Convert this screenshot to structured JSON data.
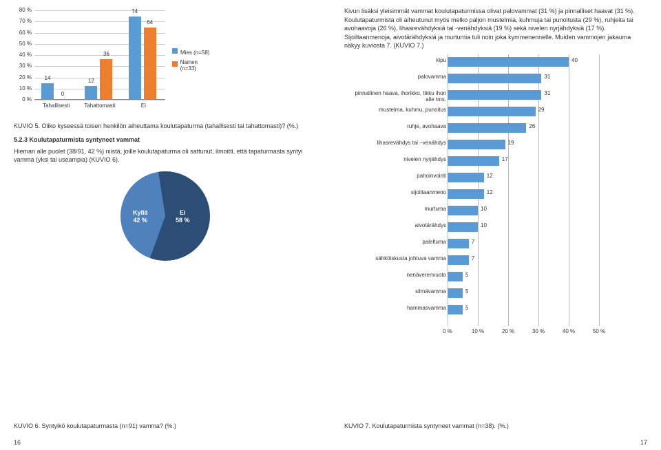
{
  "left": {
    "chart1": {
      "type": "bar-grouped",
      "ymax": 80,
      "ytick": 10,
      "categories": [
        "Tahallisesti",
        "Tahattomasti",
        "Ei"
      ],
      "series": [
        {
          "label": "Mies (n=58)",
          "color": "#5b9bd5",
          "values": [
            14,
            12,
            74
          ]
        },
        {
          "label": "Nainen (n=33)",
          "color": "#ed7d31",
          "values": [
            0,
            36,
            64
          ]
        }
      ]
    },
    "caption1": "KUVIO 5. Oliko kyseessä toisen henkilön aiheuttama koulutapaturma (tahallisesti tai tahattomasti)? (%.)",
    "section": "5.2.3 Koulutapaturmista syntyneet vammat",
    "para": "Hieman alle puolet (38/91, 42 %) niistä, joille koulutapaturma oli sattunut, ilmoitti, että tapaturmasta syntyi vamma (yksi tai useampia) (KUVIO 6).",
    "pie": {
      "slices": [
        {
          "label": "Kyllä\n42 %",
          "value": 42,
          "color": "#4f81bd"
        },
        {
          "label": "Ei\n58 %",
          "value": 58,
          "color": "#2c4d75"
        }
      ]
    },
    "caption2": "KUVIO 6. Syntyikö koulutapaturmasta (n=91) vamma? (%.)",
    "pagenum": "16"
  },
  "right": {
    "para1": "Kivun lisäksi yleisimmät vammat koulutapaturmissa olivat palovammat (31 %) ja pinnalliset haavat (31 %). Koulutapaturmista oli aiheutunut myös melko paljon mustelmia, kuhmuja tai punoitusta (29 %), ruhjeita tai avohaavoja (26 %), lihasrevähdyksiä tai -venähdyksiä (19 %) sekä nivelen nyrjähdyksiä (17 %). Sijoiltaanmenoja, aivotärähdyksiä ja murtumia tuli noin joka kymmenennelle. Muiden vammojen jakauma näkyy kuviosta 7. (KUVIO 7.)",
    "chart2": {
      "type": "bar-h",
      "xmax": 50,
      "xtick": 10,
      "bar_color": "#5b9bd5",
      "rows": [
        {
          "label": "kipu",
          "value": 40
        },
        {
          "label": "palovamma",
          "value": 31
        },
        {
          "label": "pinnallinen haava, ihorikko, tikku ihon alle tms.",
          "value": 31
        },
        {
          "label": "mustelma, kuhmu, punoitus",
          "value": 29
        },
        {
          "label": "ruhje, avohaava",
          "value": 26
        },
        {
          "label": "lihasrevähdys tai –venähdys",
          "value": 19
        },
        {
          "label": "nivelen nyrjähdys",
          "value": 17
        },
        {
          "label": "pahoinvointi",
          "value": 12
        },
        {
          "label": "sijoiltaanmeno",
          "value": 12
        },
        {
          "label": "murtuma",
          "value": 10
        },
        {
          "label": "aivotärähdys",
          "value": 10
        },
        {
          "label": "paleltuma",
          "value": 7
        },
        {
          "label": "sähköiskusta johtuva vamma",
          "value": 7
        },
        {
          "label": "nenäverenvuoto",
          "value": 5
        },
        {
          "label": "silmävamma",
          "value": 5
        },
        {
          "label": "hammasvamma",
          "value": 5
        }
      ]
    },
    "caption": "KUVIO 7. Koulutapaturmista syntyneet vammat (n=38). (%.)",
    "pagenum": "17"
  }
}
